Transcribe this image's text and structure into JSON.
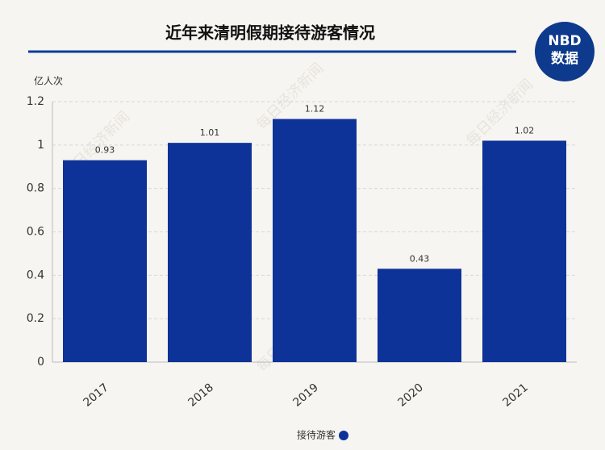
{
  "chart_data": {
    "type": "bar",
    "title": "近年来清明假期接待游客情况",
    "y_label": "亿人次",
    "categories": [
      "2017",
      "2018",
      "2019",
      "2020",
      "2021"
    ],
    "series": [
      {
        "name": "接待游客",
        "color": "#0d3399",
        "values": [
          0.93,
          1.01,
          1.12,
          0.43,
          1.02
        ]
      }
    ],
    "ylim": [
      0,
      1.2
    ],
    "yticks": [
      0,
      0.2,
      0.4,
      0.6,
      0.8,
      1,
      1.2
    ],
    "grid": true,
    "legend": "bottom"
  },
  "logo": {
    "brand": "NBD",
    "label": "数据"
  },
  "watermark": "每日经济新闻"
}
